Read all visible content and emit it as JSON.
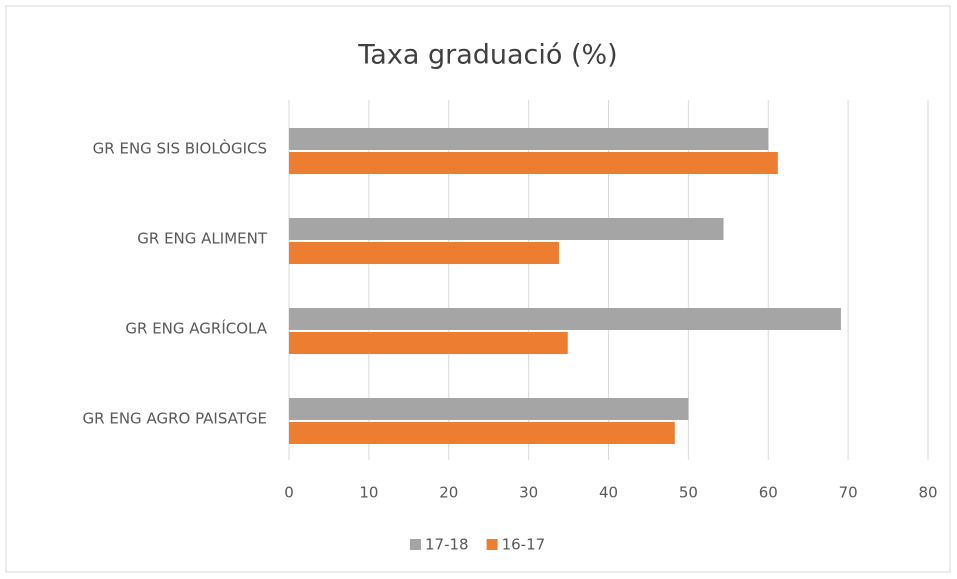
{
  "chart_data": {
    "type": "hbar",
    "title": "Taxa graduació (%)",
    "categories": [
      "GR ENG SIS BIOLÒGICS",
      "GR ENG ALIMENT",
      "GR ENG AGRÍCOLA",
      "GR ENG AGRO PAISATGE"
    ],
    "series": [
      {
        "name": "17-18",
        "color": "#a5a5a5",
        "values": [
          60,
          54.4,
          69.1,
          50
        ]
      },
      {
        "name": "16-17",
        "color": "#ed7d31",
        "values": [
          61.2,
          33.8,
          34.9,
          48.3
        ]
      }
    ],
    "xlim": [
      0,
      80
    ],
    "xticks": [
      0,
      10,
      20,
      30,
      40,
      50,
      60,
      70,
      80
    ],
    "grid": true,
    "legend": "bottom"
  }
}
